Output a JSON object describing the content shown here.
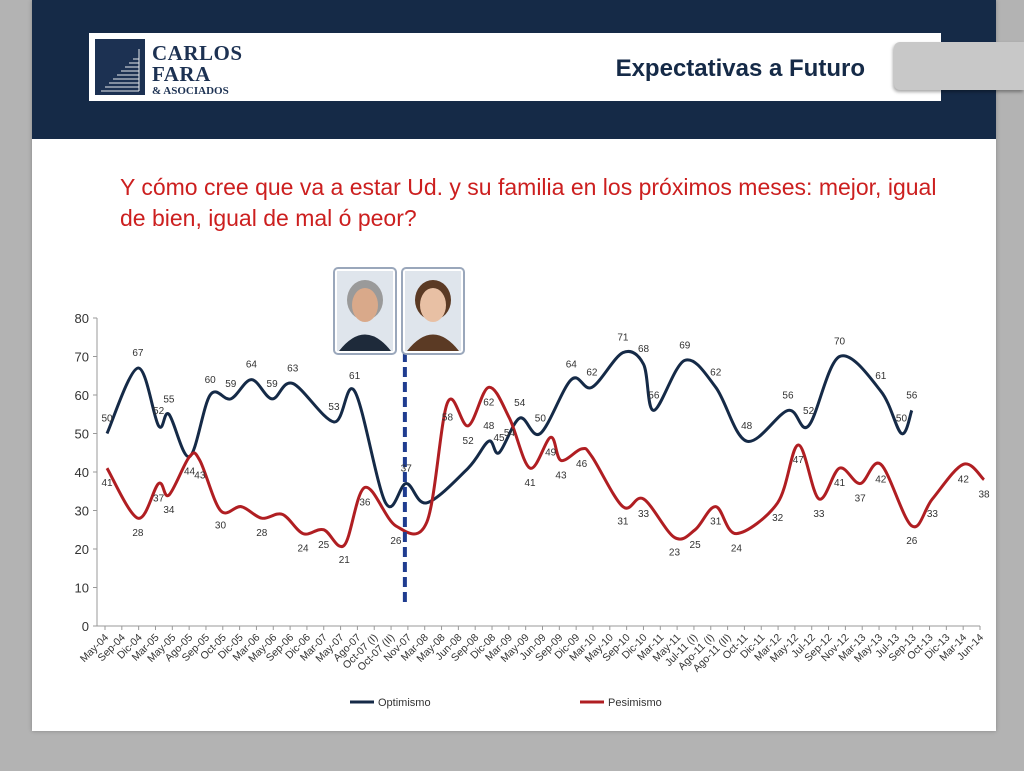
{
  "header": {
    "logo_line1": "CARLOS",
    "logo_line2": "FARA",
    "logo_line3": "& ASOCIADOS",
    "title": "Expectativas a Futuro"
  },
  "question": "Y cómo cree que va a estar Ud. y su familia en los próximos meses: mejor, igual de bien, igual de mal ó peor?",
  "colors": {
    "header_band": "#152a47",
    "question_text": "#cc1f1f",
    "optimismo": "#152a47",
    "pesimismo": "#b01e22",
    "divider": "#1f3c8f"
  },
  "photos": [
    "portrait-man-icon",
    "portrait-woman-icon"
  ],
  "chart_data": {
    "type": "line",
    "ylim": [
      0,
      80
    ],
    "yticks": [
      0,
      10,
      20,
      30,
      40,
      50,
      60,
      70,
      80
    ],
    "grid": false,
    "legend_position": "bottom",
    "categories": [
      "May-04",
      "Sep-04",
      "Dic-04",
      "Mar-05",
      "May-05",
      "Ago-05",
      "Sep-05",
      "Oct-05",
      "Dic-05",
      "Mar-06",
      "May-06",
      "Sep-06",
      "Dic-06",
      "Mar-07",
      "May-07",
      "Ago-07",
      "Oct-07 (I)",
      "Oct-07 (II)",
      "Nov-07",
      "Mar-08",
      "May-08",
      "Jun-08",
      "Sep-08",
      "Dic-08",
      "Mar-09",
      "May-09",
      "Jun-09",
      "Sep-09",
      "Dic-09",
      "Mar-10",
      "May-10",
      "Sep-10",
      "Dic-10",
      "Mar-11",
      "May-11",
      "Jul-11 (I)",
      "Ago-11 (I)",
      "Ago-11 (II)",
      "Oct-11",
      "Dic-11",
      "Mar-12",
      "May-12",
      "Jul-12",
      "Sep-12",
      "Nov-12",
      "Mar-13",
      "May-13",
      "Jul-13",
      "Sep-13",
      "Oct-13",
      "Dic-13",
      "Mar-14",
      "Jun-14"
    ],
    "divider_after_category": "Nov-07",
    "series": [
      {
        "name": "Optimismo",
        "color": "#152a47",
        "points": [
          [
            0,
            50
          ],
          [
            3,
            67
          ],
          [
            5,
            52
          ],
          [
            6,
            55
          ],
          [
            8,
            44
          ],
          [
            10,
            60
          ],
          [
            12,
            59
          ],
          [
            14,
            64
          ],
          [
            16,
            59
          ],
          [
            18,
            63
          ],
          [
            22,
            53
          ],
          [
            24,
            61
          ],
          [
            27,
            32
          ],
          [
            29,
            37
          ],
          [
            31,
            32
          ],
          [
            35,
            41
          ],
          [
            37,
            48
          ],
          [
            38,
            45
          ],
          [
            40,
            54
          ],
          [
            42,
            50
          ],
          [
            45,
            64
          ],
          [
            47,
            62
          ],
          [
            50,
            71
          ],
          [
            52,
            68
          ],
          [
            53,
            56
          ],
          [
            56,
            69
          ],
          [
            59,
            62
          ],
          [
            62,
            48
          ],
          [
            66,
            56
          ],
          [
            68,
            52
          ],
          [
            71,
            70
          ],
          [
            75,
            61
          ],
          [
            77,
            50
          ],
          [
            78,
            56
          ]
        ],
        "labels": [
          [
            0,
            50
          ],
          [
            3,
            67
          ],
          [
            5,
            52
          ],
          [
            6,
            55
          ],
          [
            10,
            60
          ],
          [
            12,
            59
          ],
          [
            14,
            64
          ],
          [
            16,
            59
          ],
          [
            18,
            63
          ],
          [
            22,
            53
          ],
          [
            24,
            61
          ],
          [
            29,
            37
          ],
          [
            37,
            48
          ],
          [
            38,
            45
          ],
          [
            40,
            54
          ],
          [
            42,
            50
          ],
          [
            45,
            64
          ],
          [
            47,
            62
          ],
          [
            50,
            71
          ],
          [
            52,
            68
          ],
          [
            53,
            56
          ],
          [
            56,
            69
          ],
          [
            59,
            62
          ],
          [
            62,
            48
          ],
          [
            66,
            56
          ],
          [
            68,
            52
          ],
          [
            71,
            70
          ],
          [
            75,
            61
          ],
          [
            77,
            50
          ],
          [
            78,
            56
          ]
        ]
      },
      {
        "name": "Pesimismo",
        "color": "#b01e22",
        "points": [
          [
            0,
            41
          ],
          [
            3,
            28
          ],
          [
            5,
            37
          ],
          [
            6,
            34
          ],
          [
            8,
            44
          ],
          [
            9,
            43
          ],
          [
            11,
            30
          ],
          [
            13,
            31
          ],
          [
            15,
            28
          ],
          [
            17,
            29
          ],
          [
            19,
            24
          ],
          [
            21,
            25
          ],
          [
            23,
            21
          ],
          [
            25,
            36
          ],
          [
            28,
            26
          ],
          [
            31,
            27
          ],
          [
            33,
            58
          ],
          [
            35,
            52
          ],
          [
            37,
            62
          ],
          [
            39,
            54
          ],
          [
            41,
            41
          ],
          [
            43,
            49
          ],
          [
            44,
            43
          ],
          [
            46,
            46
          ],
          [
            47,
            44
          ],
          [
            50,
            31
          ],
          [
            52,
            33
          ],
          [
            55,
            23
          ],
          [
            57,
            25
          ],
          [
            59,
            31
          ],
          [
            61,
            24
          ],
          [
            65,
            32
          ],
          [
            67,
            47
          ],
          [
            69,
            33
          ],
          [
            71,
            41
          ],
          [
            73,
            37
          ],
          [
            75,
            42
          ],
          [
            78,
            26
          ],
          [
            80,
            33
          ],
          [
            83,
            42
          ],
          [
            85,
            38
          ]
        ],
        "labels": [
          [
            0,
            41
          ],
          [
            3,
            28
          ],
          [
            5,
            37
          ],
          [
            6,
            34
          ],
          [
            8,
            44
          ],
          [
            9,
            43
          ],
          [
            11,
            30
          ],
          [
            15,
            28
          ],
          [
            19,
            24
          ],
          [
            21,
            25
          ],
          [
            23,
            21
          ],
          [
            25,
            36
          ],
          [
            28,
            26
          ],
          [
            33,
            58
          ],
          [
            35,
            52
          ],
          [
            37,
            62
          ],
          [
            39,
            54
          ],
          [
            41,
            41
          ],
          [
            43,
            49
          ],
          [
            44,
            43
          ],
          [
            46,
            46
          ],
          [
            50,
            31
          ],
          [
            52,
            33
          ],
          [
            55,
            23
          ],
          [
            57,
            25
          ],
          [
            59,
            31
          ],
          [
            61,
            24
          ],
          [
            65,
            32
          ],
          [
            67,
            47
          ],
          [
            69,
            33
          ],
          [
            71,
            41
          ],
          [
            73,
            37
          ],
          [
            75,
            42
          ],
          [
            78,
            26
          ],
          [
            80,
            33
          ],
          [
            83,
            42
          ],
          [
            85,
            38
          ]
        ]
      }
    ]
  }
}
